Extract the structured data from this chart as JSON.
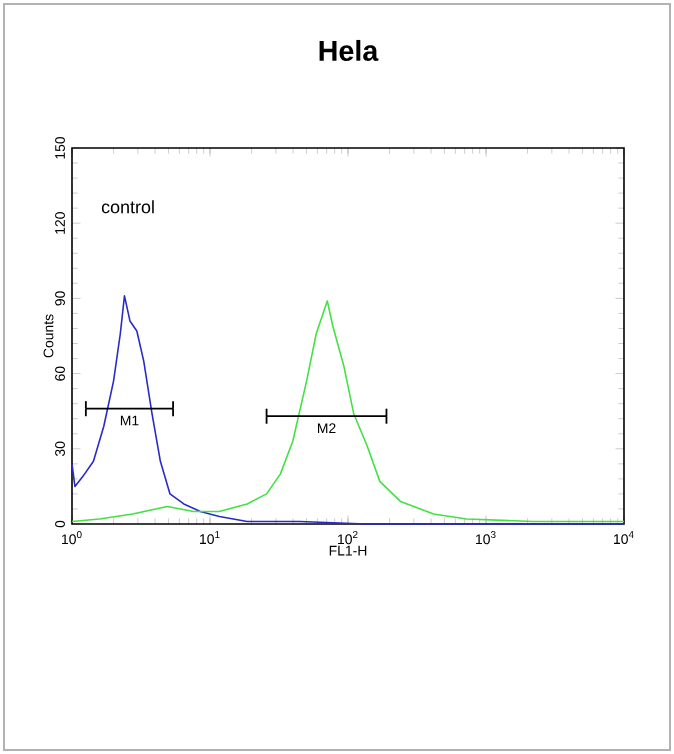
{
  "chart_data": {
    "type": "line",
    "title": "Hela",
    "xlabel": "FL1-H",
    "ylabel": "Counts",
    "log": "x",
    "xlim": [
      1,
      10000
    ],
    "ylim": [
      0,
      150
    ],
    "xticks": [
      {
        "value": 1,
        "label": "10$^{0}$"
      },
      {
        "value": 10,
        "label": "10$^{1}$"
      },
      {
        "value": 100,
        "label": "10$^{2}$"
      },
      {
        "value": 1000,
        "label": "10$^{3}$"
      },
      {
        "value": 10000,
        "label": "10$^{4}$"
      }
    ],
    "yticks": [
      0,
      30,
      60,
      90,
      120,
      150
    ],
    "annotations": [
      "control"
    ],
    "series": [
      {
        "color": "#2a2ac8",
        "x": [
          1,
          1.05,
          1.2,
          1.43,
          1.7,
          2,
          2.24,
          2.4,
          2.63,
          2.95,
          3.31,
          3.8,
          4.37,
          5.13,
          6.46,
          8.51,
          11.7,
          18.6,
          44.7,
          135,
          10000
        ],
        "values": [
          24,
          15,
          19,
          25,
          39,
          57,
          76,
          91,
          81,
          77,
          65,
          44,
          25,
          12,
          8,
          5,
          3,
          1,
          1,
          0,
          0
        ]
      },
      {
        "color": "#44e044",
        "x": [
          1,
          1.58,
          2.75,
          4.9,
          7.59,
          11.7,
          18.6,
          25.7,
          32.4,
          39.8,
          50.1,
          58.9,
          70.8,
          77.6,
          93.3,
          110,
          138,
          170,
          240,
          417,
          724,
          2190,
          10000
        ],
        "values": [
          1,
          2,
          4,
          7,
          5,
          5,
          8,
          12,
          20,
          33,
          57,
          76,
          89,
          79,
          63,
          44,
          31,
          17,
          9,
          4,
          2,
          1,
          1
        ]
      },
      {
        "name": "M1",
        "color": "#000000",
        "x": [
          1.26,
          5.4
        ],
        "values": [
          46,
          46
        ],
        "errors": [
          3,
          3
        ]
      },
      {
        "name": "M2",
        "color": "#000000",
        "x": [
          25.7,
          190
        ],
        "values": [
          43,
          43
        ],
        "errors": [
          3,
          3
        ]
      }
    ]
  }
}
